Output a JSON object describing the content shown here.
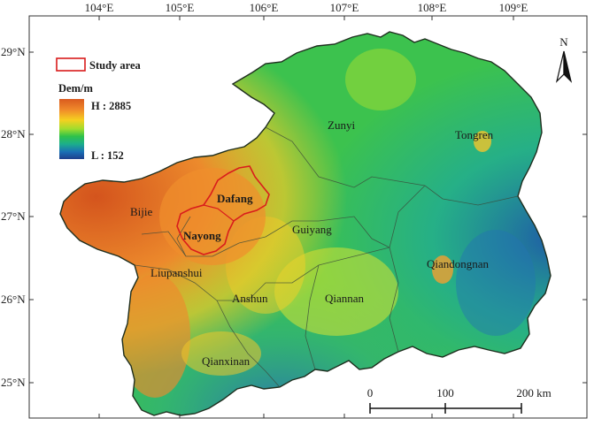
{
  "graticule": {
    "longitudes": [
      "104°E",
      "105°E",
      "106°E",
      "107°E",
      "108°E",
      "109°E"
    ],
    "latitudes": [
      "29°N",
      "28°N",
      "27°N",
      "26°N",
      "25°N"
    ]
  },
  "legend": {
    "study_area_label": "Study area",
    "dem_title": "Dem/m",
    "high_label": "H : 2885",
    "low_label": "L : 152",
    "colors": [
      "#d95a1f",
      "#f08a2a",
      "#f5d020",
      "#b8e030",
      "#33c24a",
      "#1bb08a",
      "#1a6fb5",
      "#1d3f8c"
    ]
  },
  "north_arrow": {
    "label": "N",
    "icon": "north-arrow-icon"
  },
  "scale_bar": {
    "labels": [
      "0",
      "100",
      "200 km"
    ]
  },
  "places": {
    "zunyi": "Zunyi",
    "tongren": "Tongren",
    "bijie": "Bijie",
    "dafang": "Dafang",
    "nayong": "Nayong",
    "guiyang": "Guiyang",
    "liupanshui": "Liupanshui",
    "qiandongnan": "Qiandongnan",
    "anshun": "Anshun",
    "qiannan": "Qiannan",
    "qianxinan": "Qianxinan"
  }
}
